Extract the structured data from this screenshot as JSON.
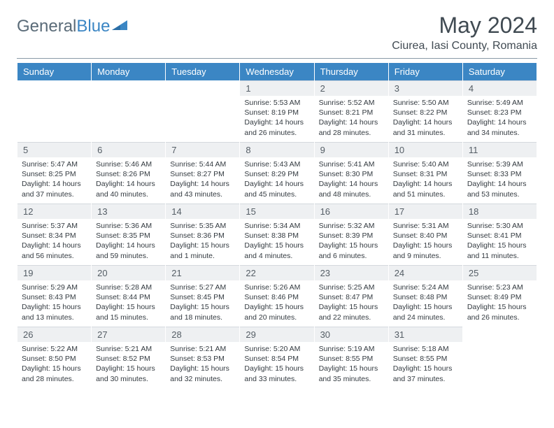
{
  "brand": {
    "g": "General",
    "b": "Blue"
  },
  "month_title": "May 2024",
  "location": "Ciurea, Iasi County, Romania",
  "day_headers": [
    "Sunday",
    "Monday",
    "Tuesday",
    "Wednesday",
    "Thursday",
    "Friday",
    "Saturday"
  ],
  "colors": {
    "header_bg": "#3b86c4",
    "header_fg": "#ffffff",
    "daynum_bg": "#eef0f2",
    "text": "#333a40",
    "brand_gray": "#5a6b78",
    "brand_blue": "#3b86c4"
  },
  "weeks": [
    [
      null,
      null,
      null,
      {
        "n": "1",
        "sr": "5:53 AM",
        "ss": "8:19 PM",
        "dl": "14 hours and 26 minutes."
      },
      {
        "n": "2",
        "sr": "5:52 AM",
        "ss": "8:21 PM",
        "dl": "14 hours and 28 minutes."
      },
      {
        "n": "3",
        "sr": "5:50 AM",
        "ss": "8:22 PM",
        "dl": "14 hours and 31 minutes."
      },
      {
        "n": "4",
        "sr": "5:49 AM",
        "ss": "8:23 PM",
        "dl": "14 hours and 34 minutes."
      }
    ],
    [
      {
        "n": "5",
        "sr": "5:47 AM",
        "ss": "8:25 PM",
        "dl": "14 hours and 37 minutes."
      },
      {
        "n": "6",
        "sr": "5:46 AM",
        "ss": "8:26 PM",
        "dl": "14 hours and 40 minutes."
      },
      {
        "n": "7",
        "sr": "5:44 AM",
        "ss": "8:27 PM",
        "dl": "14 hours and 43 minutes."
      },
      {
        "n": "8",
        "sr": "5:43 AM",
        "ss": "8:29 PM",
        "dl": "14 hours and 45 minutes."
      },
      {
        "n": "9",
        "sr": "5:41 AM",
        "ss": "8:30 PM",
        "dl": "14 hours and 48 minutes."
      },
      {
        "n": "10",
        "sr": "5:40 AM",
        "ss": "8:31 PM",
        "dl": "14 hours and 51 minutes."
      },
      {
        "n": "11",
        "sr": "5:39 AM",
        "ss": "8:33 PM",
        "dl": "14 hours and 53 minutes."
      }
    ],
    [
      {
        "n": "12",
        "sr": "5:37 AM",
        "ss": "8:34 PM",
        "dl": "14 hours and 56 minutes."
      },
      {
        "n": "13",
        "sr": "5:36 AM",
        "ss": "8:35 PM",
        "dl": "14 hours and 59 minutes."
      },
      {
        "n": "14",
        "sr": "5:35 AM",
        "ss": "8:36 PM",
        "dl": "15 hours and 1 minute."
      },
      {
        "n": "15",
        "sr": "5:34 AM",
        "ss": "8:38 PM",
        "dl": "15 hours and 4 minutes."
      },
      {
        "n": "16",
        "sr": "5:32 AM",
        "ss": "8:39 PM",
        "dl": "15 hours and 6 minutes."
      },
      {
        "n": "17",
        "sr": "5:31 AM",
        "ss": "8:40 PM",
        "dl": "15 hours and 9 minutes."
      },
      {
        "n": "18",
        "sr": "5:30 AM",
        "ss": "8:41 PM",
        "dl": "15 hours and 11 minutes."
      }
    ],
    [
      {
        "n": "19",
        "sr": "5:29 AM",
        "ss": "8:43 PM",
        "dl": "15 hours and 13 minutes."
      },
      {
        "n": "20",
        "sr": "5:28 AM",
        "ss": "8:44 PM",
        "dl": "15 hours and 15 minutes."
      },
      {
        "n": "21",
        "sr": "5:27 AM",
        "ss": "8:45 PM",
        "dl": "15 hours and 18 minutes."
      },
      {
        "n": "22",
        "sr": "5:26 AM",
        "ss": "8:46 PM",
        "dl": "15 hours and 20 minutes."
      },
      {
        "n": "23",
        "sr": "5:25 AM",
        "ss": "8:47 PM",
        "dl": "15 hours and 22 minutes."
      },
      {
        "n": "24",
        "sr": "5:24 AM",
        "ss": "8:48 PM",
        "dl": "15 hours and 24 minutes."
      },
      {
        "n": "25",
        "sr": "5:23 AM",
        "ss": "8:49 PM",
        "dl": "15 hours and 26 minutes."
      }
    ],
    [
      {
        "n": "26",
        "sr": "5:22 AM",
        "ss": "8:50 PM",
        "dl": "15 hours and 28 minutes."
      },
      {
        "n": "27",
        "sr": "5:21 AM",
        "ss": "8:52 PM",
        "dl": "15 hours and 30 minutes."
      },
      {
        "n": "28",
        "sr": "5:21 AM",
        "ss": "8:53 PM",
        "dl": "15 hours and 32 minutes."
      },
      {
        "n": "29",
        "sr": "5:20 AM",
        "ss": "8:54 PM",
        "dl": "15 hours and 33 minutes."
      },
      {
        "n": "30",
        "sr": "5:19 AM",
        "ss": "8:55 PM",
        "dl": "15 hours and 35 minutes."
      },
      {
        "n": "31",
        "sr": "5:18 AM",
        "ss": "8:55 PM",
        "dl": "15 hours and 37 minutes."
      },
      null
    ]
  ],
  "labels": {
    "sunrise": "Sunrise:",
    "sunset": "Sunset:",
    "daylight": "Daylight:"
  }
}
